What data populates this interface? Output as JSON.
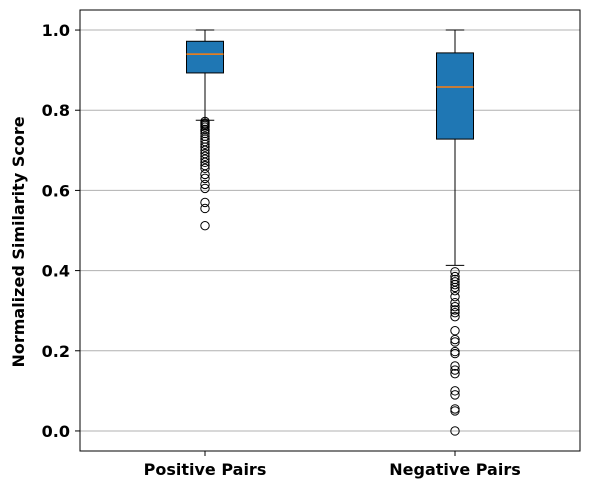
{
  "chart_data": {
    "type": "boxplot",
    "title": "",
    "xlabel": "",
    "ylabel": "Normalized Similarity Score",
    "ylim": [
      -0.05,
      1.05
    ],
    "yticks": [
      "0.0",
      "0.2",
      "0.4",
      "0.6",
      "0.8",
      "1.0"
    ],
    "grid": "y",
    "box_color": "#1f77b4",
    "median_color": "#ff7f0e",
    "categories": [
      "Positive Pairs",
      "Negative Pairs"
    ],
    "boxes": [
      {
        "name": "Positive Pairs",
        "whisker_low": 0.775,
        "q1": 0.893,
        "median": 0.94,
        "q3": 0.972,
        "whisker_high": 1.0,
        "outliers": [
          0.772,
          0.768,
          0.765,
          0.762,
          0.758,
          0.752,
          0.748,
          0.742,
          0.735,
          0.728,
          0.722,
          0.715,
          0.708,
          0.7,
          0.692,
          0.685,
          0.678,
          0.67,
          0.662,
          0.655,
          0.64,
          0.63,
          0.615,
          0.605,
          0.57,
          0.555,
          0.512
        ]
      },
      {
        "name": "Negative Pairs",
        "whisker_low": 0.413,
        "q1": 0.728,
        "median": 0.858,
        "q3": 0.943,
        "whisker_high": 1.0,
        "outliers": [
          0.397,
          0.385,
          0.378,
          0.372,
          0.365,
          0.358,
          0.35,
          0.335,
          0.32,
          0.31,
          0.302,
          0.295,
          0.285,
          0.25,
          0.228,
          0.222,
          0.198,
          0.193,
          0.162,
          0.152,
          0.143,
          0.1,
          0.09,
          0.055,
          0.05,
          0.0
        ]
      }
    ]
  }
}
